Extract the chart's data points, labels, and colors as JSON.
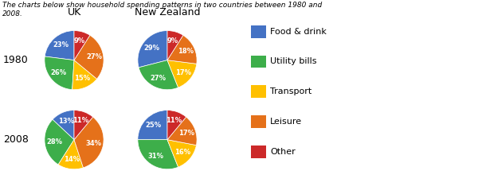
{
  "title": "The charts below show household spending patterns in two countries between 1980 and\n2008.",
  "title_fontsize": 6.5,
  "categories": [
    "Food & drink",
    "Utility bills",
    "Transport",
    "Leisure",
    "Other"
  ],
  "colors": [
    "#4472c4",
    "#3dae4a",
    "#ffc000",
    "#e5711a",
    "#cc2929"
  ],
  "uk_1980": [
    23,
    26,
    15,
    27,
    9
  ],
  "nz_1980": [
    29,
    27,
    17,
    18,
    9
  ],
  "uk_2008": [
    13,
    28,
    14,
    34,
    11
  ],
  "nz_2008": [
    25,
    31,
    16,
    17,
    11
  ],
  "row_labels": [
    "1980",
    "2008"
  ],
  "col_labels": [
    "UK",
    "New Zealand"
  ],
  "col_label_fontsize": 9,
  "row_label_fontsize": 9,
  "pct_fontsize": 6,
  "legend_fontsize": 8,
  "startangle": 90
}
